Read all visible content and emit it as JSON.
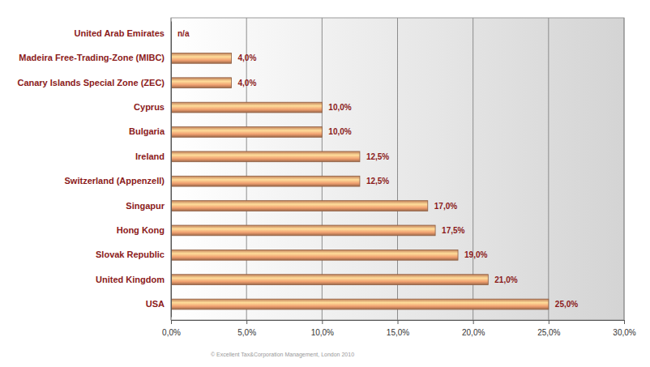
{
  "chart_data": {
    "type": "bar",
    "orientation": "horizontal",
    "categories": [
      "United Arab Emirates",
      "Madeira Free-Trading-Zone (MIBC)",
      "Canary Islands Special Zone (ZEC)",
      "Cyprus",
      "Bulgaria",
      "Ireland",
      "Switzerland (Appenzell)",
      "Singapur",
      "Hong Kong",
      "Slovak Republic",
      "United Kingdom",
      "USA"
    ],
    "values": [
      null,
      4.0,
      4.0,
      10.0,
      10.0,
      12.5,
      12.5,
      17.0,
      17.5,
      19.0,
      21.0,
      25.0
    ],
    "value_labels": [
      "n/a",
      "4,0%",
      "4,0%",
      "10,0%",
      "10,0%",
      "12,5%",
      "12,5%",
      "17,0%",
      "17,5%",
      "19,0%",
      "21,0%",
      "25,0%"
    ],
    "color": "#f0a070",
    "xlim": [
      0,
      30
    ],
    "xticks": [
      {
        "value": 0,
        "label": "0,0%"
      },
      {
        "value": 5,
        "label": "5,0%"
      },
      {
        "value": 10,
        "label": "10,0%"
      },
      {
        "value": 15,
        "label": "15,0%"
      },
      {
        "value": 20,
        "label": "20,0%"
      },
      {
        "value": 25,
        "label": "25,0%"
      },
      {
        "value": 30,
        "label": "30,0%"
      }
    ],
    "grid": true,
    "data_labels": true,
    "annotations": [
      "© Excellent Tax&Corporation Management, London 2010"
    ]
  }
}
